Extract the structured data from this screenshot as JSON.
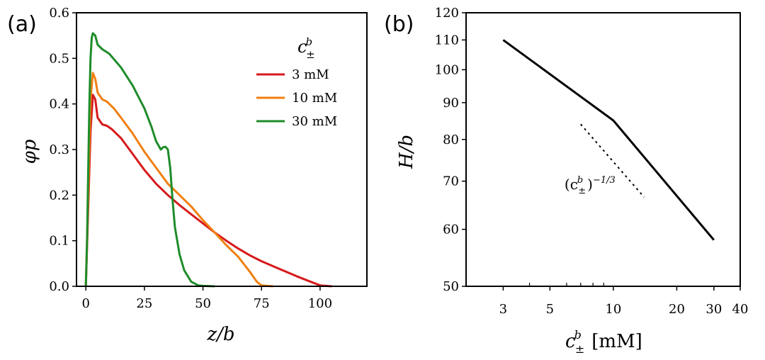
{
  "chart_data": [
    {
      "panel_label": "(a)",
      "type": "line",
      "xlabel": "z/b",
      "ylabel": "φp",
      "xlim": [
        -4,
        120
      ],
      "ylim": [
        0,
        0.6
      ],
      "xticks": [
        0,
        25,
        50,
        75,
        100
      ],
      "yticks": [
        0.0,
        0.1,
        0.2,
        0.3,
        0.4,
        0.5,
        0.6
      ],
      "legend": {
        "title_base": "c",
        "title_sup": "b",
        "title_sub": "±",
        "placement": "top-right"
      },
      "series": [
        {
          "name": "3 mM",
          "color": "#d7191c",
          "x": [
            0,
            1,
            2,
            3,
            4,
            5,
            7,
            9,
            11,
            15,
            20,
            25,
            30,
            35,
            40,
            45,
            50,
            55,
            60,
            65,
            70,
            75,
            80,
            85,
            90,
            95,
            100,
            105
          ],
          "y": [
            0,
            0.17,
            0.34,
            0.42,
            0.41,
            0.37,
            0.355,
            0.352,
            0.345,
            0.325,
            0.29,
            0.255,
            0.225,
            0.2,
            0.178,
            0.158,
            0.138,
            0.118,
            0.1,
            0.083,
            0.068,
            0.055,
            0.044,
            0.033,
            0.022,
            0.012,
            0.002,
            0
          ]
        },
        {
          "name": "10 mM",
          "color": "#f07f12",
          "x": [
            0,
            1,
            2,
            3,
            4,
            5,
            7,
            9,
            12,
            15,
            20,
            25,
            30,
            35,
            40,
            45,
            50,
            55,
            60,
            65,
            70,
            73,
            75,
            80
          ],
          "y": [
            0,
            0.2,
            0.41,
            0.468,
            0.455,
            0.425,
            0.41,
            0.405,
            0.39,
            0.37,
            0.335,
            0.295,
            0.26,
            0.225,
            0.2,
            0.175,
            0.145,
            0.118,
            0.09,
            0.065,
            0.032,
            0.01,
            0.002,
            0
          ]
        },
        {
          "name": "30 mM",
          "color": "#1e8c2a",
          "x": [
            0,
            0.5,
            1,
            1.5,
            2,
            2.5,
            3,
            4,
            5,
            7,
            10,
            15,
            20,
            25,
            28,
            30,
            32,
            33,
            34,
            35,
            36,
            37,
            38,
            40,
            42,
            45,
            48,
            50,
            55
          ],
          "y": [
            0,
            0.1,
            0.25,
            0.4,
            0.5,
            0.545,
            0.555,
            0.55,
            0.53,
            0.52,
            0.51,
            0.48,
            0.44,
            0.39,
            0.35,
            0.318,
            0.3,
            0.305,
            0.306,
            0.3,
            0.26,
            0.19,
            0.13,
            0.07,
            0.035,
            0.01,
            0.002,
            0.001,
            0
          ]
        }
      ]
    },
    {
      "panel_label": "(b)",
      "type": "line",
      "xscale": "log",
      "yscale": "log",
      "xlabel_base": "c",
      "xlabel_sup": "b",
      "xlabel_sub": "±",
      "xlabel_unit": "[mM]",
      "ylabel": "H/b",
      "xlim": [
        2,
        40
      ],
      "ylim": [
        50,
        120
      ],
      "xticks": [
        3,
        5,
        10,
        20,
        30,
        40
      ],
      "xminor": [
        4,
        6,
        7,
        8,
        9
      ],
      "yticks": [
        50,
        60,
        70,
        80,
        90,
        100,
        110,
        120
      ],
      "series": [
        {
          "name": "H/b",
          "color": "#000000",
          "style": "solid",
          "x": [
            3,
            10,
            30
          ],
          "y": [
            110,
            85,
            58
          ]
        },
        {
          "name": "reference slope",
          "color": "#000000",
          "style": "dotted",
          "x": [
            7,
            14
          ],
          "y": [
            84,
            66.5
          ]
        }
      ],
      "annotation": {
        "base": "(c",
        "sup": "b",
        "sub": "±",
        "close": ")",
        "power": "−1/3",
        "at_x": 8.5,
        "at_y": 69.5
      }
    }
  ]
}
